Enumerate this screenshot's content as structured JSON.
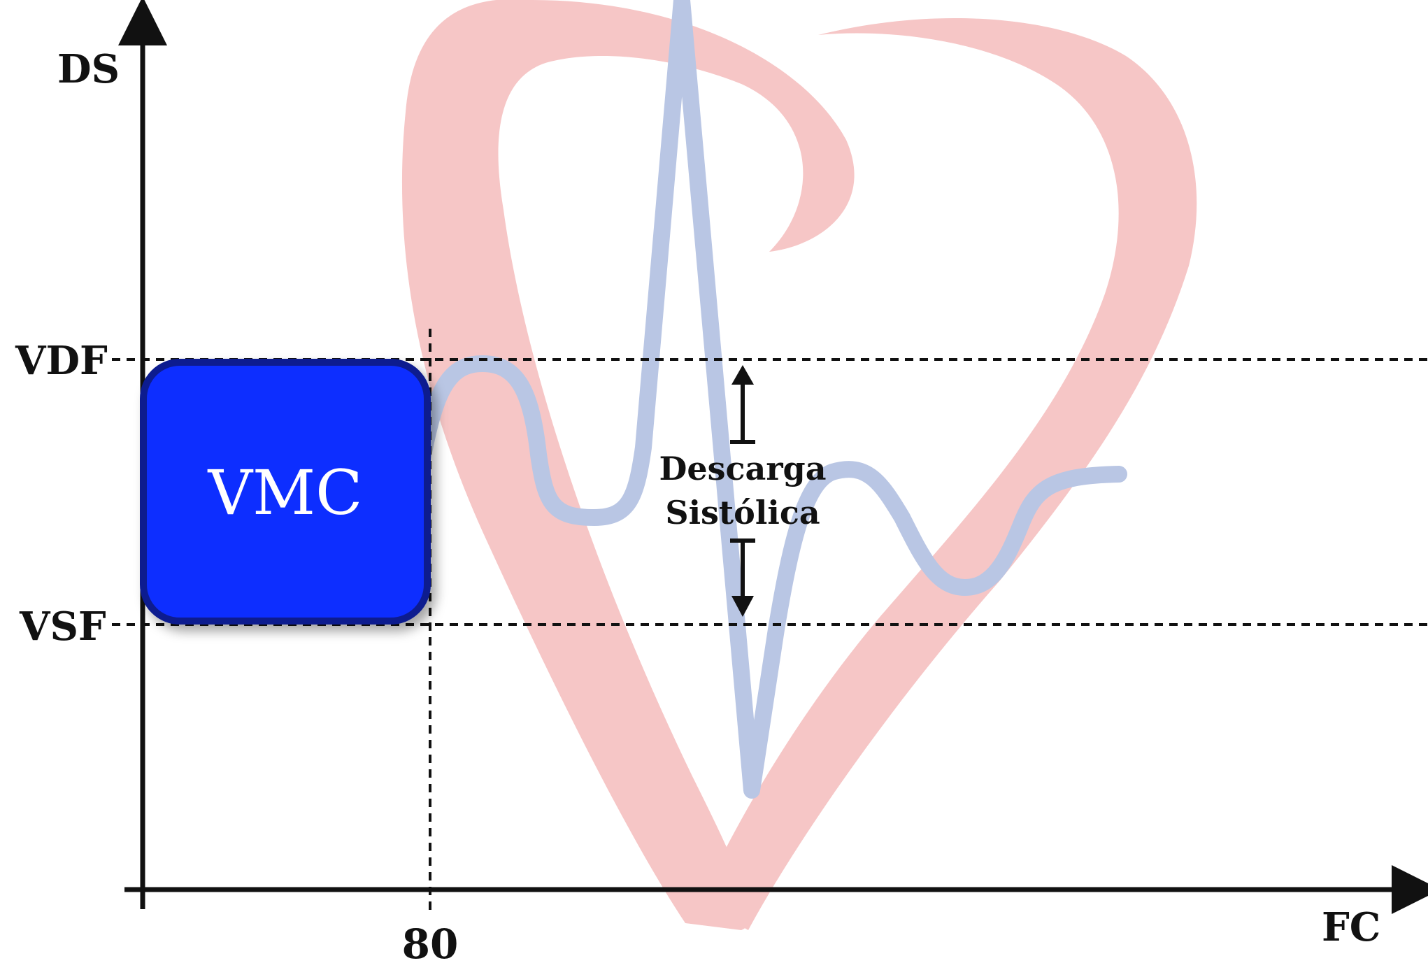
{
  "axes": {
    "y_label": "DS",
    "x_label": "FC",
    "x_tick": "80",
    "y_ticks": {
      "upper": "VDF",
      "lower": "VSF"
    }
  },
  "box": {
    "label": "VMC",
    "color": "#0a2dff",
    "border_color": "#0a1f8f"
  },
  "annotation": {
    "line1": "Descarga",
    "line2": "Sistólica"
  },
  "watermark": {
    "heart_color": "#f6c6c6",
    "ecg_color": "#b9c6e4"
  }
}
